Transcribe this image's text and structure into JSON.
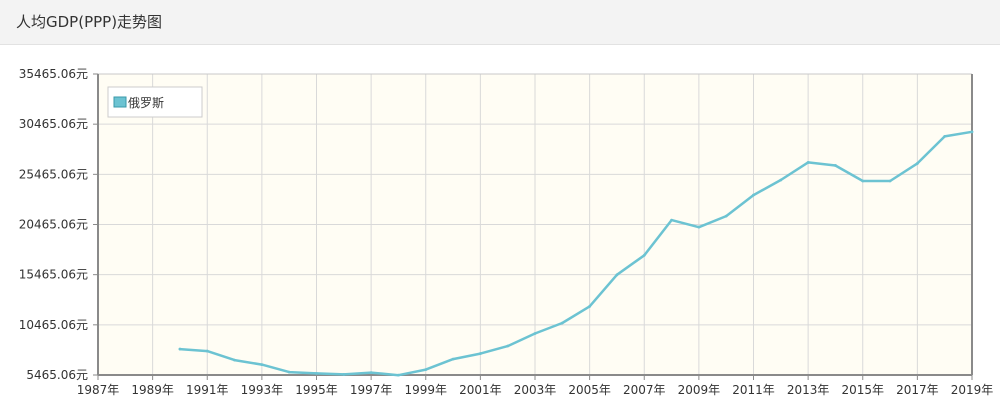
{
  "header": {
    "title": "人均GDP(PPP)走势图"
  },
  "colors": {
    "series": "#6cc3d2",
    "plot_bg": "#fffdf4",
    "grid": "#d9d9d9",
    "frame": "#8a8a8a"
  },
  "chart_data": {
    "type": "line",
    "title": "",
    "xlabel": "",
    "ylabel": "",
    "legend_position": "top-left",
    "grid": true,
    "x_tick_labels": [
      "1987年",
      "1989年",
      "1991年",
      "1993年",
      "1995年",
      "1997年",
      "1999年",
      "2001年",
      "2003年",
      "2005年",
      "2007年",
      "2009年",
      "2011年",
      "2013年",
      "2015年",
      "2017年",
      "2019年"
    ],
    "y_tick_labels": [
      "5465.06元",
      "10465.06元",
      "15465.06元",
      "20465.06元",
      "25465.06元",
      "30465.06元",
      "35465.06元"
    ],
    "xlim": [
      1987,
      2019
    ],
    "ylim": [
      5465.06,
      35465.06
    ],
    "y_ticks": [
      5465.06,
      10465.06,
      15465.06,
      20465.06,
      25465.06,
      30465.06,
      35465.06
    ],
    "x_ticks": [
      1987,
      1989,
      1991,
      1993,
      1995,
      1997,
      1999,
      2001,
      2003,
      2005,
      2007,
      2009,
      2011,
      2013,
      2015,
      2017,
      2019
    ],
    "series": [
      {
        "name": "俄罗斯",
        "x": [
          1990,
          1991,
          1992,
          1993,
          1994,
          1995,
          1996,
          1997,
          1998,
          1999,
          2000,
          2001,
          2002,
          2003,
          2004,
          2005,
          2006,
          2007,
          2008,
          2009,
          2010,
          2011,
          2012,
          2013,
          2014,
          2015,
          2016,
          2017,
          2018,
          2019
        ],
        "values": [
          8050,
          7850,
          6950,
          6500,
          5750,
          5620,
          5520,
          5700,
          5450,
          6000,
          7050,
          7600,
          8350,
          9600,
          10650,
          12300,
          15450,
          17400,
          20900,
          20200,
          21300,
          23400,
          24900,
          26650,
          26350,
          24800,
          24800,
          26550,
          29250,
          29700
        ]
      }
    ]
  }
}
